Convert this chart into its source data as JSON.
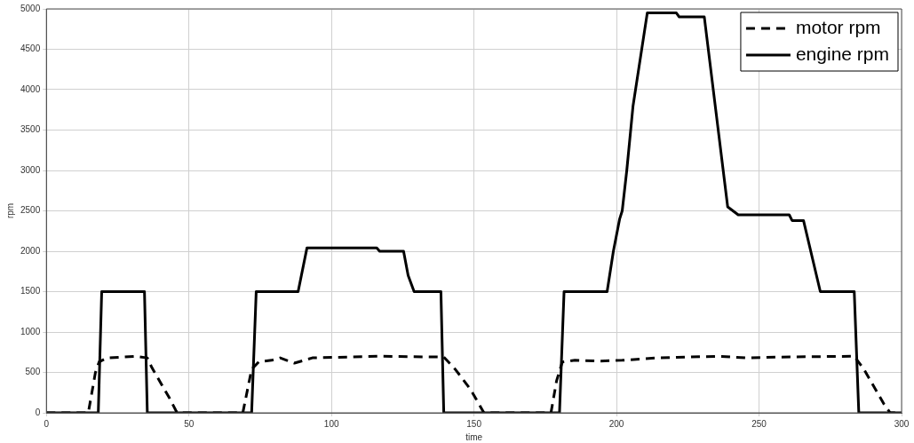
{
  "chart_data": {
    "type": "line",
    "xlabel": "time",
    "ylabel": "rpm",
    "xlim": [
      0,
      300
    ],
    "xticks": [
      0,
      50,
      100,
      150,
      200,
      250,
      300
    ],
    "ylim": [
      0,
      5000
    ],
    "yticks": [
      0,
      500,
      1000,
      1500,
      2000,
      2500,
      3000,
      3500,
      4000,
      4500,
      5000
    ],
    "grid": true,
    "legend": "top right",
    "marker": "none",
    "series": [
      {
        "name": "motor rpm",
        "color": "#000000",
        "line_style": "dashed",
        "x": [
          0,
          14.7,
          17.2,
          18.5,
          21.3,
          31.3,
          35.4,
          37,
          43.2,
          45.4,
          46,
          68.9,
          72,
          74.5,
          79,
          82,
          87,
          93.3,
          116.5,
          139.4,
          143.4,
          148.8,
          153.5,
          177,
          179,
          181,
          185.4,
          193.5,
          202,
          214.5,
          235.5,
          245.8,
          256,
          283.4,
          286.6,
          293.8,
          296,
          300
        ],
        "values": [
          0,
          0,
          500,
          630,
          680,
          700,
          680,
          560,
          180,
          30,
          0,
          0,
          540,
          630,
          650,
          680,
          615,
          680,
          700,
          690,
          540,
          290,
          0,
          0,
          400,
          630,
          650,
          640,
          650,
          680,
          700,
          680,
          690,
          700,
          550,
          110,
          0,
          0
        ]
      },
      {
        "name": "engine rpm",
        "color": "#000000",
        "line_style": "solid",
        "x": [
          0,
          18.2,
          19.4,
          34.4,
          35.4,
          72,
          73.6,
          88.3,
          91.4,
          115.9,
          116.9,
          125.3,
          126.9,
          129,
          138.4,
          139.4,
          180,
          181.6,
          196.7,
          198.9,
          201.1,
          202,
          203.6,
          205.8,
          210.8,
          221,
          222,
          230.8,
          239,
          242.7,
          260.6,
          261.6,
          265.6,
          271.5,
          283.4,
          285,
          300
        ],
        "values": [
          0,
          0,
          1500,
          1500,
          0,
          0,
          1500,
          1500,
          2040,
          2040,
          2000,
          2000,
          1700,
          1500,
          1500,
          0,
          0,
          1500,
          1500,
          2000,
          2400,
          2500,
          3000,
          3800,
          4950,
          4950,
          4900,
          4900,
          2550,
          2450,
          2450,
          2380,
          2380,
          1500,
          1500,
          0,
          0
        ]
      }
    ]
  }
}
